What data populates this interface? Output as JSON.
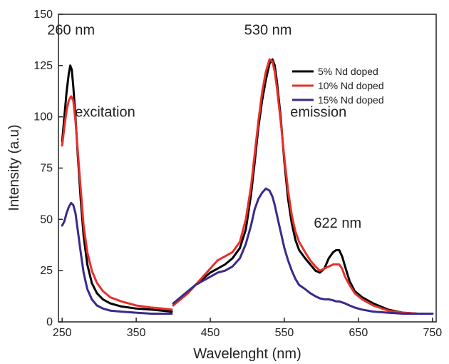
{
  "chart_data": {
    "type": "line",
    "title": "",
    "xlabel": "Wavelenght (nm)",
    "ylabel": "Intensity (a.u)",
    "xlim": [
      245,
      755
    ],
    "ylim": [
      0,
      150
    ],
    "x_ticks": [
      250,
      350,
      450,
      550,
      650,
      750
    ],
    "y_ticks": [
      0,
      25,
      50,
      75,
      100,
      125,
      150
    ],
    "grid": false,
    "legend": {
      "placement": "top-right"
    },
    "annotations": [
      {
        "text": "260 nm",
        "x": 262,
        "y": 140
      },
      {
        "text": "excitation",
        "x": 308,
        "y": 100
      },
      {
        "text": "530 nm",
        "x": 528,
        "y": 140
      },
      {
        "text": "emission",
        "x": 596,
        "y": 100
      },
      {
        "text": "622 nm",
        "x": 622,
        "y": 46
      }
    ],
    "series": [
      {
        "name": "5% Nd doped",
        "color": "#000000",
        "segments": [
          [
            [
              250,
              88
            ],
            [
              253,
              100
            ],
            [
              256,
              112
            ],
            [
              259,
              121
            ],
            [
              261,
              125
            ],
            [
              263,
              123
            ],
            [
              265,
              115
            ],
            [
              268,
              100
            ],
            [
              271,
              82
            ],
            [
              275,
              60
            ],
            [
              279,
              42
            ],
            [
              284,
              28
            ],
            [
              290,
              19
            ],
            [
              297,
              14
            ],
            [
              305,
              11
            ],
            [
              315,
              9
            ],
            [
              330,
              7.5
            ],
            [
              350,
              6.5
            ],
            [
              370,
              6
            ],
            [
              385,
              5.5
            ],
            [
              398,
              5
            ]
          ],
          [
            [
              400,
              9
            ],
            [
              410,
              12
            ],
            [
              420,
              15
            ],
            [
              430,
              18
            ],
            [
              440,
              21
            ],
            [
              450,
              24
            ],
            [
              460,
              26
            ],
            [
              470,
              28
            ],
            [
              480,
              31
            ],
            [
              490,
              36
            ],
            [
              498,
              45
            ],
            [
              505,
              62
            ],
            [
              510,
              78
            ],
            [
              515,
              95
            ],
            [
              520,
              108
            ],
            [
              525,
              118
            ],
            [
              530,
              126
            ],
            [
              534,
              128
            ],
            [
              537,
              125
            ],
            [
              540,
              117
            ],
            [
              545,
              100
            ],
            [
              550,
              78
            ],
            [
              555,
              60
            ],
            [
              560,
              48
            ],
            [
              565,
              40
            ],
            [
              570,
              35
            ],
            [
              578,
              31
            ],
            [
              585,
              28
            ],
            [
              592,
              25
            ],
            [
              598,
              24
            ],
            [
              604,
              26
            ],
            [
              610,
              31
            ],
            [
              616,
              34
            ],
            [
              620,
              35
            ],
            [
              624,
              35
            ],
            [
              628,
              32
            ],
            [
              632,
              27
            ],
            [
              638,
              20
            ],
            [
              645,
              15
            ],
            [
              655,
              12
            ],
            [
              670,
              9
            ],
            [
              690,
              6
            ],
            [
              710,
              4.5
            ],
            [
              730,
              4
            ],
            [
              750,
              4
            ]
          ]
        ]
      },
      {
        "name": "10% Nd doped",
        "color": "#e8302a",
        "segments": [
          [
            [
              250,
              86
            ],
            [
              253,
              95
            ],
            [
              256,
              103
            ],
            [
              259,
              108
            ],
            [
              262,
              110
            ],
            [
              265,
              108
            ],
            [
              268,
              98
            ],
            [
              271,
              84
            ],
            [
              275,
              65
            ],
            [
              279,
              47
            ],
            [
              284,
              34
            ],
            [
              290,
              25
            ],
            [
              297,
              19
            ],
            [
              305,
              15
            ],
            [
              315,
              12
            ],
            [
              330,
              10
            ],
            [
              350,
              8
            ],
            [
              370,
              7
            ],
            [
              385,
              6.5
            ],
            [
              398,
              6
            ]
          ],
          [
            [
              400,
              8
            ],
            [
              410,
              11
            ],
            [
              420,
              14
            ],
            [
              430,
              18
            ],
            [
              440,
              22
            ],
            [
              450,
              26
            ],
            [
              460,
              30
            ],
            [
              470,
              32
            ],
            [
              480,
              34
            ],
            [
              490,
              39
            ],
            [
              498,
              50
            ],
            [
              505,
              66
            ],
            [
              510,
              82
            ],
            [
              515,
              98
            ],
            [
              520,
              112
            ],
            [
              525,
              122
            ],
            [
              530,
              128
            ],
            [
              534,
              127
            ],
            [
              537,
              122
            ],
            [
              540,
              114
            ],
            [
              545,
              98
            ],
            [
              550,
              80
            ],
            [
              555,
              64
            ],
            [
              560,
              52
            ],
            [
              565,
              44
            ],
            [
              570,
              39
            ],
            [
              578,
              34
            ],
            [
              585,
              30
            ],
            [
              592,
              27
            ],
            [
              598,
              25
            ],
            [
              604,
              26
            ],
            [
              610,
              27
            ],
            [
              616,
              28
            ],
            [
              620,
              28
            ],
            [
              624,
              28
            ],
            [
              628,
              26
            ],
            [
              632,
              22
            ],
            [
              638,
              18
            ],
            [
              645,
              14
            ],
            [
              655,
              11
            ],
            [
              670,
              8
            ],
            [
              690,
              5.5
            ],
            [
              710,
              4.5
            ],
            [
              730,
              4
            ],
            [
              750,
              4
            ]
          ]
        ]
      },
      {
        "name": "15% Nd doped",
        "color": "#3a2a8a",
        "segments": [
          [
            [
              250,
              47
            ],
            [
              253,
              49
            ],
            [
              256,
              53
            ],
            [
              259,
              56
            ],
            [
              262,
              58
            ],
            [
              265,
              57
            ],
            [
              268,
              53
            ],
            [
              271,
              45
            ],
            [
              275,
              34
            ],
            [
              279,
              24
            ],
            [
              284,
              16
            ],
            [
              290,
              11
            ],
            [
              297,
              8
            ],
            [
              305,
              6.5
            ],
            [
              315,
              5.5
            ],
            [
              330,
              5
            ],
            [
              350,
              4.5
            ],
            [
              370,
              4
            ],
            [
              385,
              4
            ],
            [
              398,
              4
            ]
          ],
          [
            [
              400,
              9
            ],
            [
              410,
              12
            ],
            [
              420,
              15
            ],
            [
              430,
              18
            ],
            [
              440,
              20
            ],
            [
              450,
              22
            ],
            [
              460,
              24
            ],
            [
              470,
              25
            ],
            [
              480,
              27
            ],
            [
              490,
              31
            ],
            [
              498,
              38
            ],
            [
              505,
              47
            ],
            [
              510,
              55
            ],
            [
              515,
              60
            ],
            [
              520,
              63
            ],
            [
              525,
              65
            ],
            [
              530,
              64
            ],
            [
              534,
              61
            ],
            [
              537,
              57
            ],
            [
              540,
              52
            ],
            [
              545,
              44
            ],
            [
              550,
              36
            ],
            [
              555,
              30
            ],
            [
              560,
              25
            ],
            [
              565,
              21
            ],
            [
              570,
              18
            ],
            [
              578,
              16
            ],
            [
              585,
              14
            ],
            [
              592,
              12.5
            ],
            [
              598,
              11.5
            ],
            [
              604,
              11
            ],
            [
              610,
              11
            ],
            [
              616,
              10.5
            ],
            [
              620,
              10
            ],
            [
              624,
              10
            ],
            [
              628,
              9.5
            ],
            [
              632,
              9
            ],
            [
              638,
              8
            ],
            [
              645,
              7
            ],
            [
              655,
              6
            ],
            [
              670,
              5
            ],
            [
              690,
              4.5
            ],
            [
              710,
              4
            ],
            [
              730,
              4
            ],
            [
              750,
              4
            ]
          ]
        ]
      }
    ]
  }
}
